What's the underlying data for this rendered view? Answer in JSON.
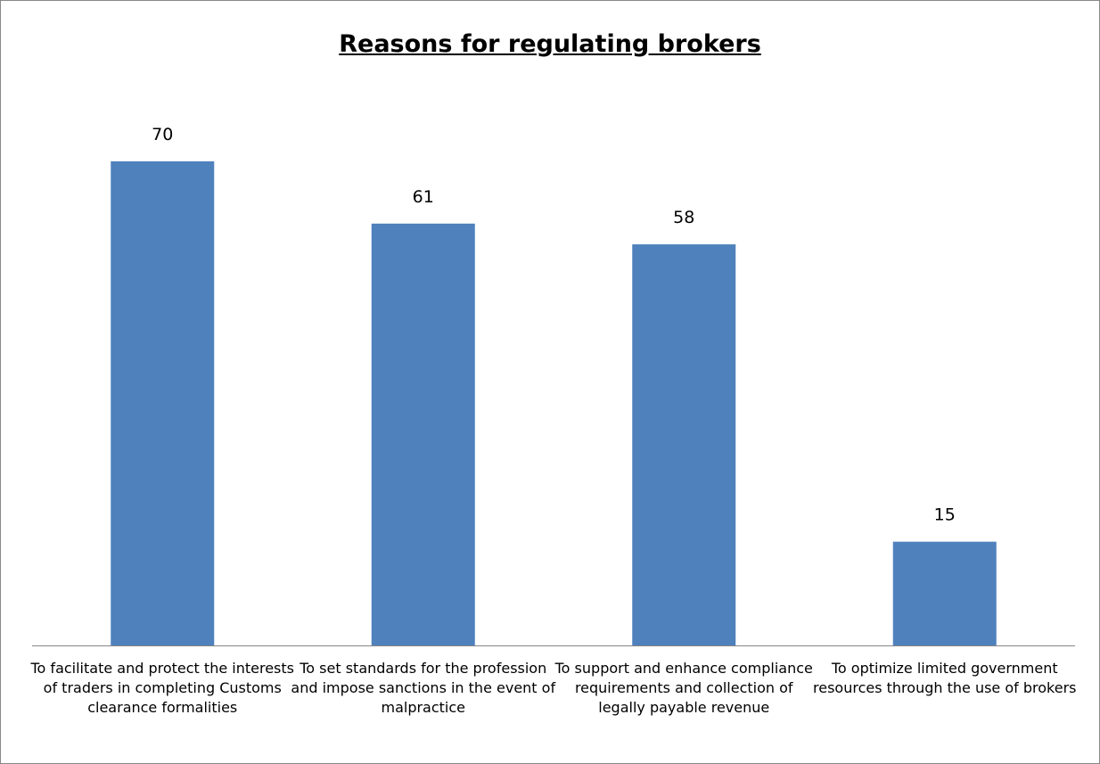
{
  "chart_data": {
    "type": "bar",
    "title": "Reasons for regulating brokers",
    "categories": [
      "To facilitate and protect the interests of traders in completing Customs clearance formalities",
      "To set standards for the profession and impose sanctions in the event of malpractice",
      "To support and enhance compliance requirements and collection of legally payable revenue",
      "To optimize limited government resources through the use of brokers"
    ],
    "values": [
      70,
      61,
      58,
      15
    ],
    "data_labels": [
      "70",
      "61",
      "58",
      "15"
    ],
    "xlabel": "",
    "ylabel": "",
    "ylim": [
      0,
      70
    ],
    "grid": false,
    "legend": "none",
    "bar_color": "#4F81BD",
    "axis_color": "#868686"
  }
}
